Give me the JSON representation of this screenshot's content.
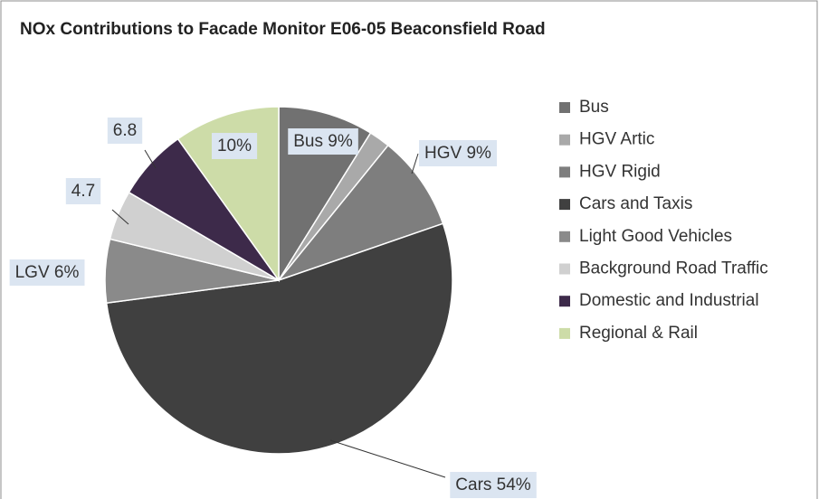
{
  "chart_data": {
    "type": "pie",
    "title": "NOx Contributions to Facade Monitor E06-05 Beaconsfield Road",
    "categories": [
      "Bus",
      "HGV Artic",
      "HGV Rigid",
      "Cars and Taxis",
      "Light Good Vehicles",
      "Background Road Traffic",
      "Domestic and Industrial",
      "Regional & Rail"
    ],
    "values": [
      9,
      2,
      9,
      54,
      6,
      4.7,
      6.8,
      10
    ],
    "value_labels": [
      "Bus 9%",
      null,
      "HGV 9%",
      "Cars 54%",
      "LGV 6%",
      "4.7",
      "6.8",
      "10%"
    ],
    "colors": [
      "#717171",
      "#a9a9a9",
      "#7e7e7e",
      "#404040",
      "#8a8a8a",
      "#d0d0d0",
      "#3d2a4a",
      "#cddca8"
    ],
    "legend": "right"
  }
}
